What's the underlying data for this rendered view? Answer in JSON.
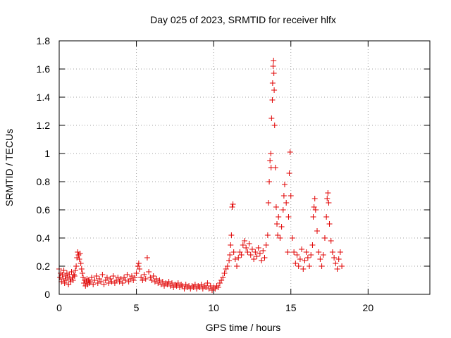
{
  "chart_data": {
    "type": "scatter",
    "title": "Day 025 of 2023, SRMTID for receiver hlfx",
    "xlabel": "GPS time / hours",
    "ylabel": "SRMTID / TECUs",
    "xlim": [
      0,
      24
    ],
    "ylim": [
      0,
      1.8
    ],
    "xticks": [
      0,
      5,
      10,
      15,
      20
    ],
    "xtick_labels": [
      "0",
      "5",
      "10",
      "15",
      "20"
    ],
    "yticks": [
      0,
      0.2,
      0.4,
      0.6,
      0.8,
      1.0,
      1.2,
      1.4,
      1.6,
      1.8
    ],
    "ytick_labels": [
      "0",
      "0.2",
      "0.4",
      "0.6",
      "0.8",
      "1",
      "1.2",
      "1.4",
      "1.6",
      "1.8"
    ],
    "grid": true,
    "marker": "+",
    "color": "#e00000",
    "series": [
      {
        "name": "SRMTID",
        "points": [
          [
            0.0,
            0.18
          ],
          [
            0.05,
            0.12
          ],
          [
            0.1,
            0.15
          ],
          [
            0.15,
            0.09
          ],
          [
            0.2,
            0.14
          ],
          [
            0.25,
            0.11
          ],
          [
            0.3,
            0.17
          ],
          [
            0.35,
            0.08
          ],
          [
            0.4,
            0.13
          ],
          [
            0.45,
            0.1
          ],
          [
            0.5,
            0.15
          ],
          [
            0.55,
            0.12
          ],
          [
            0.6,
            0.07
          ],
          [
            0.65,
            0.14
          ],
          [
            0.7,
            0.11
          ],
          [
            0.75,
            0.09
          ],
          [
            0.8,
            0.16
          ],
          [
            0.85,
            0.12
          ],
          [
            0.9,
            0.1
          ],
          [
            0.95,
            0.14
          ],
          [
            1.0,
            0.13
          ],
          [
            1.05,
            0.17
          ],
          [
            1.1,
            0.2
          ],
          [
            1.15,
            0.26
          ],
          [
            1.2,
            0.3
          ],
          [
            1.25,
            0.28
          ],
          [
            1.3,
            0.25
          ],
          [
            1.35,
            0.29
          ],
          [
            1.4,
            0.22
          ],
          [
            1.45,
            0.18
          ],
          [
            1.5,
            0.15
          ],
          [
            1.55,
            0.12
          ],
          [
            1.6,
            0.08
          ],
          [
            1.65,
            0.1
          ],
          [
            1.7,
            0.06
          ],
          [
            1.75,
            0.09
          ],
          [
            1.8,
            0.11
          ],
          [
            1.85,
            0.07
          ],
          [
            1.9,
            0.1
          ],
          [
            1.95,
            0.08
          ],
          [
            2.0,
            0.09
          ],
          [
            2.1,
            0.12
          ],
          [
            2.2,
            0.07
          ],
          [
            2.3,
            0.1
          ],
          [
            2.4,
            0.13
          ],
          [
            2.5,
            0.08
          ],
          [
            2.6,
            0.11
          ],
          [
            2.7,
            0.09
          ],
          [
            2.8,
            0.14
          ],
          [
            2.9,
            0.07
          ],
          [
            3.0,
            0.1
          ],
          [
            3.1,
            0.12
          ],
          [
            3.2,
            0.08
          ],
          [
            3.3,
            0.11
          ],
          [
            3.4,
            0.09
          ],
          [
            3.5,
            0.13
          ],
          [
            3.6,
            0.08
          ],
          [
            3.7,
            0.1
          ],
          [
            3.8,
            0.12
          ],
          [
            3.9,
            0.09
          ],
          [
            4.0,
            0.11
          ],
          [
            4.1,
            0.08
          ],
          [
            4.2,
            0.12
          ],
          [
            4.3,
            0.1
          ],
          [
            4.4,
            0.14
          ],
          [
            4.5,
            0.09
          ],
          [
            4.6,
            0.11
          ],
          [
            4.7,
            0.13
          ],
          [
            4.8,
            0.1
          ],
          [
            4.9,
            0.12
          ],
          [
            5.0,
            0.15
          ],
          [
            5.1,
            0.2
          ],
          [
            5.15,
            0.22
          ],
          [
            5.2,
            0.18
          ],
          [
            5.3,
            0.12
          ],
          [
            5.4,
            0.1
          ],
          [
            5.5,
            0.14
          ],
          [
            5.6,
            0.11
          ],
          [
            5.7,
            0.26
          ],
          [
            5.8,
            0.16
          ],
          [
            5.9,
            0.12
          ],
          [
            6.0,
            0.1
          ],
          [
            6.1,
            0.13
          ],
          [
            6.2,
            0.09
          ],
          [
            6.3,
            0.11
          ],
          [
            6.4,
            0.08
          ],
          [
            6.5,
            0.1
          ],
          [
            6.6,
            0.07
          ],
          [
            6.7,
            0.09
          ],
          [
            6.8,
            0.06
          ],
          [
            6.9,
            0.08
          ],
          [
            7.0,
            0.07
          ],
          [
            7.1,
            0.09
          ],
          [
            7.2,
            0.06
          ],
          [
            7.3,
            0.08
          ],
          [
            7.4,
            0.05
          ],
          [
            7.5,
            0.07
          ],
          [
            7.6,
            0.06
          ],
          [
            7.7,
            0.08
          ],
          [
            7.8,
            0.05
          ],
          [
            7.9,
            0.07
          ],
          [
            8.0,
            0.06
          ],
          [
            8.1,
            0.04
          ],
          [
            8.2,
            0.07
          ],
          [
            8.3,
            0.05
          ],
          [
            8.4,
            0.06
          ],
          [
            8.5,
            0.04
          ],
          [
            8.6,
            0.06
          ],
          [
            8.7,
            0.05
          ],
          [
            8.8,
            0.07
          ],
          [
            8.9,
            0.04
          ],
          [
            9.0,
            0.06
          ],
          [
            9.1,
            0.05
          ],
          [
            9.2,
            0.07
          ],
          [
            9.3,
            0.04
          ],
          [
            9.4,
            0.06
          ],
          [
            9.5,
            0.05
          ],
          [
            9.6,
            0.08
          ],
          [
            9.7,
            0.04
          ],
          [
            9.8,
            0.06
          ],
          [
            9.9,
            0.03
          ],
          [
            10.0,
            0.05
          ],
          [
            10.1,
            0.04
          ],
          [
            10.2,
            0.06
          ],
          [
            10.3,
            0.05
          ],
          [
            10.4,
            0.08
          ],
          [
            10.5,
            0.1
          ],
          [
            10.6,
            0.12
          ],
          [
            10.7,
            0.15
          ],
          [
            10.8,
            0.18
          ],
          [
            10.9,
            0.2
          ],
          [
            11.0,
            0.24
          ],
          [
            11.05,
            0.28
          ],
          [
            11.1,
            0.35
          ],
          [
            11.15,
            0.42
          ],
          [
            11.2,
            0.62
          ],
          [
            11.25,
            0.64
          ],
          [
            11.3,
            0.3
          ],
          [
            11.4,
            0.25
          ],
          [
            11.5,
            0.2
          ],
          [
            11.6,
            0.26
          ],
          [
            11.7,
            0.3
          ],
          [
            11.8,
            0.28
          ],
          [
            11.9,
            0.35
          ],
          [
            12.0,
            0.38
          ],
          [
            12.1,
            0.33
          ],
          [
            12.2,
            0.3
          ],
          [
            12.3,
            0.36
          ],
          [
            12.4,
            0.28
          ],
          [
            12.5,
            0.32
          ],
          [
            12.6,
            0.25
          ],
          [
            12.7,
            0.3
          ],
          [
            12.8,
            0.27
          ],
          [
            12.9,
            0.33
          ],
          [
            13.0,
            0.29
          ],
          [
            13.1,
            0.24
          ],
          [
            13.2,
            0.31
          ],
          [
            13.3,
            0.26
          ],
          [
            13.4,
            0.35
          ],
          [
            13.5,
            0.42
          ],
          [
            13.55,
            0.65
          ],
          [
            13.6,
            0.8
          ],
          [
            13.65,
            0.95
          ],
          [
            13.7,
            1.0
          ],
          [
            13.72,
            0.9
          ],
          [
            13.75,
            1.25
          ],
          [
            13.8,
            1.38
          ],
          [
            13.82,
            1.5
          ],
          [
            13.85,
            1.62
          ],
          [
            13.88,
            1.66
          ],
          [
            13.9,
            1.57
          ],
          [
            13.92,
            1.45
          ],
          [
            13.95,
            1.2
          ],
          [
            14.0,
            0.9
          ],
          [
            14.05,
            0.62
          ],
          [
            14.1,
            0.5
          ],
          [
            14.15,
            0.42
          ],
          [
            14.2,
            0.55
          ],
          [
            14.3,
            0.4
          ],
          [
            14.4,
            0.48
          ],
          [
            14.5,
            0.6
          ],
          [
            14.55,
            0.7
          ],
          [
            14.6,
            0.78
          ],
          [
            14.7,
            0.65
          ],
          [
            14.8,
            0.3
          ],
          [
            14.85,
            0.55
          ],
          [
            14.9,
            0.86
          ],
          [
            14.95,
            1.01
          ],
          [
            15.0,
            0.7
          ],
          [
            15.1,
            0.4
          ],
          [
            15.2,
            0.3
          ],
          [
            15.3,
            0.22
          ],
          [
            15.4,
            0.28
          ],
          [
            15.5,
            0.2
          ],
          [
            15.6,
            0.25
          ],
          [
            15.7,
            0.32
          ],
          [
            15.8,
            0.18
          ],
          [
            15.9,
            0.24
          ],
          [
            16.0,
            0.3
          ],
          [
            16.1,
            0.26
          ],
          [
            16.2,
            0.2
          ],
          [
            16.3,
            0.28
          ],
          [
            16.4,
            0.35
          ],
          [
            16.45,
            0.55
          ],
          [
            16.5,
            0.62
          ],
          [
            16.55,
            0.68
          ],
          [
            16.6,
            0.6
          ],
          [
            16.7,
            0.45
          ],
          [
            16.8,
            0.3
          ],
          [
            16.9,
            0.25
          ],
          [
            17.0,
            0.2
          ],
          [
            17.1,
            0.28
          ],
          [
            17.2,
            0.4
          ],
          [
            17.3,
            0.55
          ],
          [
            17.35,
            0.68
          ],
          [
            17.4,
            0.72
          ],
          [
            17.45,
            0.65
          ],
          [
            17.5,
            0.5
          ],
          [
            17.6,
            0.38
          ],
          [
            17.7,
            0.3
          ],
          [
            17.8,
            0.26
          ],
          [
            17.9,
            0.22
          ],
          [
            18.0,
            0.18
          ],
          [
            18.1,
            0.25
          ],
          [
            18.2,
            0.3
          ],
          [
            18.3,
            0.2
          ]
        ]
      }
    ]
  }
}
